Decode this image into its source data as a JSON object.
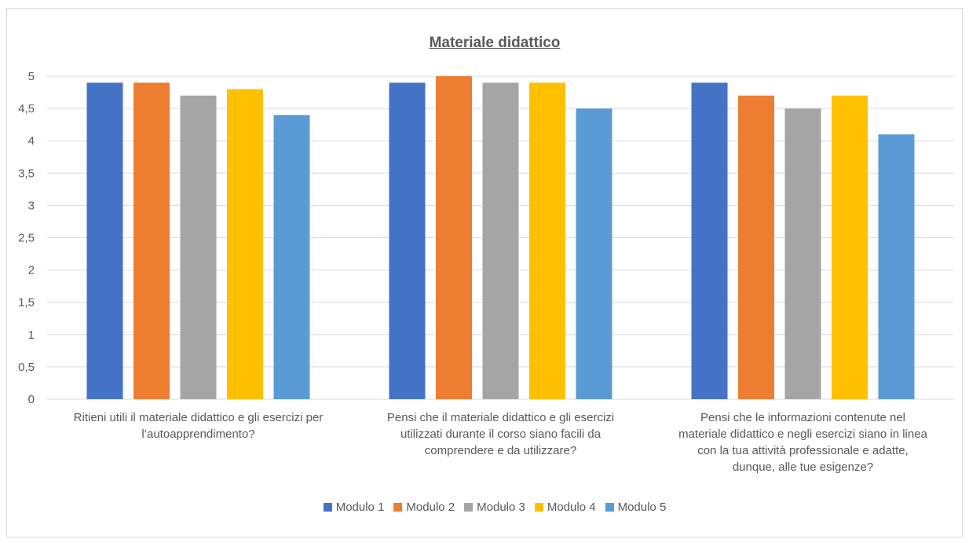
{
  "chart_data": {
    "type": "bar",
    "title": "Materiale didattico",
    "categories": [
      [
        "Ritieni utili il materiale didattico e gli esercizi per",
        "l’autoapprendimento?"
      ],
      [
        "Pensi che il materiale didattico e gli esercizi",
        "utilizzati durante il corso siano facili da",
        "comprendere e da utilizzare?"
      ],
      [
        "Pensi che le informazioni contenute nel",
        "materiale didattico e negli esercizi siano in linea",
        "con la tua attività professionale e adatte,",
        "dunque, alle tue esigenze?"
      ]
    ],
    "series": [
      {
        "name": "Modulo 1",
        "color": "#4472c4",
        "values": [
          4.9,
          4.9,
          4.9
        ]
      },
      {
        "name": "Modulo 2",
        "color": "#ed7d31",
        "values": [
          4.9,
          5.0,
          4.7
        ]
      },
      {
        "name": "Modulo 3",
        "color": "#a5a5a5",
        "values": [
          4.7,
          4.9,
          4.5
        ]
      },
      {
        "name": "Modulo 4",
        "color": "#ffc000",
        "values": [
          4.8,
          4.9,
          4.7
        ]
      },
      {
        "name": "Modulo 5",
        "color": "#5b9bd5",
        "values": [
          4.4,
          4.5,
          4.1
        ]
      }
    ],
    "yticks": [
      "0",
      "0,5",
      "1",
      "1,5",
      "2",
      "2,5",
      "3",
      "3,5",
      "4",
      "4,5",
      "5"
    ],
    "ylim": [
      0,
      5
    ],
    "grid": true,
    "legend_position": "bottom"
  }
}
